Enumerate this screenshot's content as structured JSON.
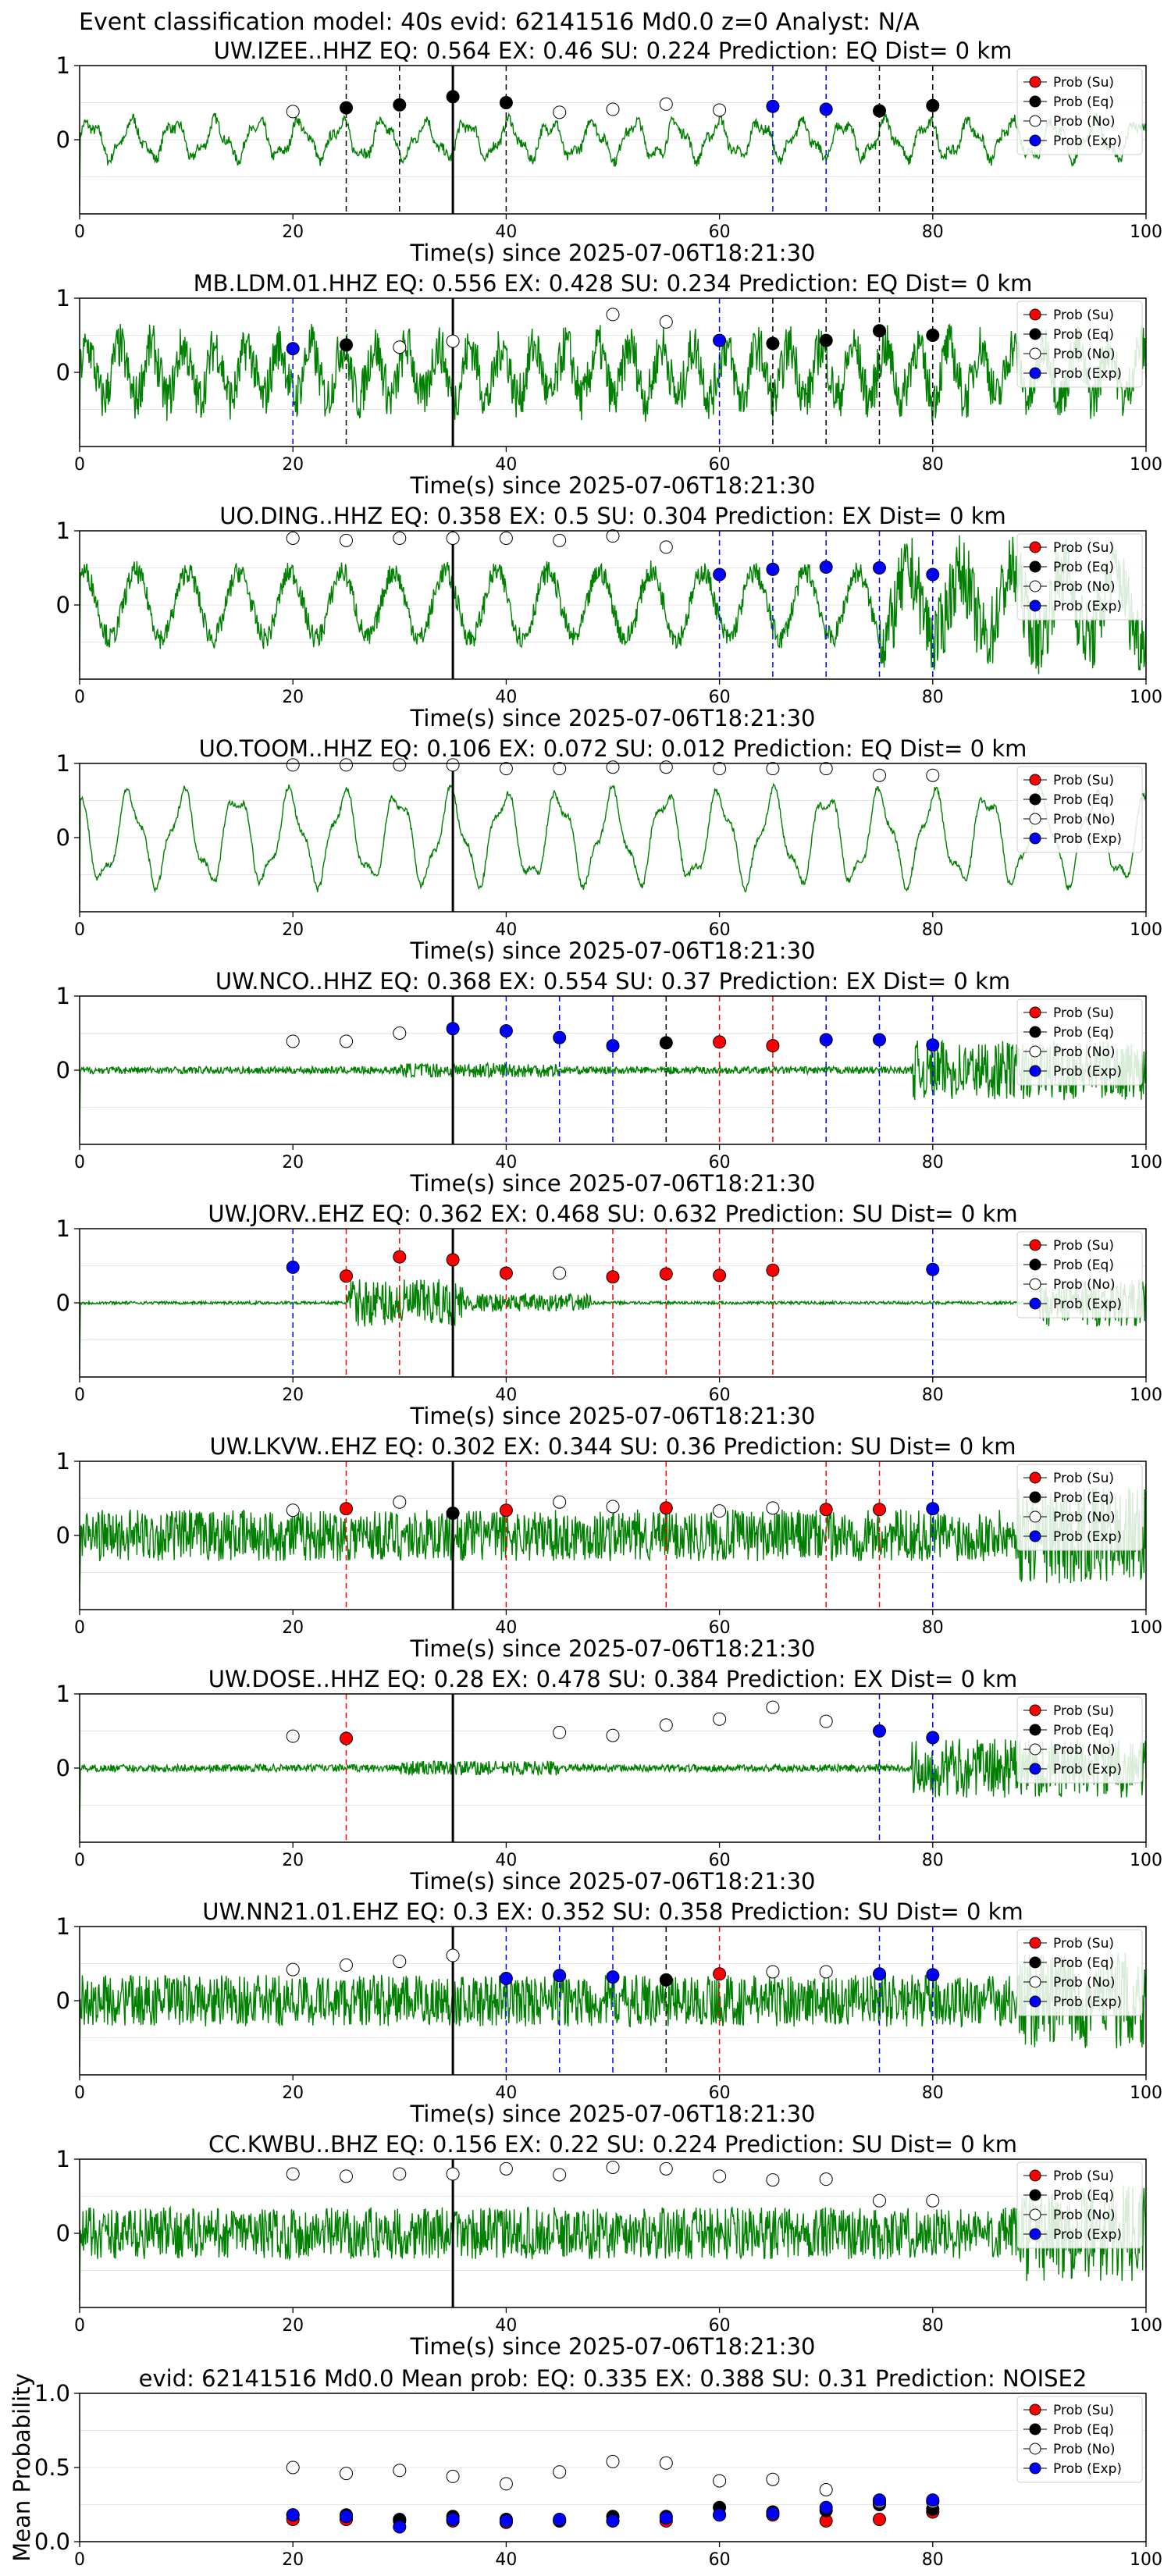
{
  "suptitle": "Event classification model: 40s evid: 62141516 Md0.0 z=0 Analyst: N/A",
  "xlabel": "Time(s) since 2025-07-06T18:21:30",
  "legend": [
    "Prob (Su)",
    "Prob (Eq)",
    "Prob (No)",
    "Prob (Exp)"
  ],
  "colors": {
    "su": "#ff0000",
    "eq": "#000000",
    "no": "#ffffff",
    "exp": "#0000ff",
    "trace": "#008000",
    "su_line": "#ff0000",
    "eq_line": "#000000",
    "exp_line": "#0000ff"
  },
  "chart_data": [
    {
      "type": "line",
      "title": "UW.IZEE..HHZ   EQ: 0.564  EX: 0.46  SU: 0.224   Prediction: EQ    Dist= 0 km",
      "xlim": [
        0,
        100
      ],
      "xticks": [
        0,
        20,
        40,
        60,
        80,
        100
      ],
      "ylim": [
        -1,
        1
      ],
      "yticks": [
        0,
        1
      ],
      "vline": 35,
      "noise": "low_wave",
      "points": [
        [
          20,
          0.38,
          "no"
        ],
        [
          25,
          0.43,
          "eq"
        ],
        [
          30,
          0.47,
          "eq"
        ],
        [
          35,
          0.58,
          "eq"
        ],
        [
          40,
          0.5,
          "eq"
        ],
        [
          45,
          0.37,
          "no"
        ],
        [
          50,
          0.41,
          "no"
        ],
        [
          55,
          0.48,
          "no"
        ],
        [
          60,
          0.4,
          "no"
        ],
        [
          65,
          0.45,
          "exp"
        ],
        [
          70,
          0.41,
          "exp"
        ],
        [
          75,
          0.39,
          "eq"
        ],
        [
          80,
          0.46,
          "eq"
        ]
      ]
    },
    {
      "type": "line",
      "title": "MB.LDM.01.HHZ   EQ: 0.556  EX: 0.428  SU: 0.234   Prediction: EQ    Dist= 0 km",
      "xlim": [
        0,
        100
      ],
      "xticks": [
        0,
        20,
        40,
        60,
        80,
        100
      ],
      "ylim": [
        -1,
        1
      ],
      "yticks": [
        0,
        1
      ],
      "vline": 35,
      "noise": "mixed",
      "points": [
        [
          20,
          0.32,
          "exp"
        ],
        [
          25,
          0.37,
          "eq"
        ],
        [
          30,
          0.34,
          "no"
        ],
        [
          35,
          0.42,
          "no"
        ],
        [
          50,
          0.78,
          "no"
        ],
        [
          55,
          0.68,
          "no"
        ],
        [
          60,
          0.43,
          "exp"
        ],
        [
          65,
          0.39,
          "eq"
        ],
        [
          70,
          0.43,
          "eq"
        ],
        [
          75,
          0.56,
          "eq"
        ],
        [
          80,
          0.5,
          "eq"
        ]
      ]
    },
    {
      "type": "line",
      "title": "UO.DING..HHZ   EQ: 0.358  EX: 0.5  SU: 0.304   Prediction: EX    Dist= 0 km",
      "xlim": [
        0,
        100
      ],
      "xticks": [
        0,
        20,
        40,
        60,
        80,
        100
      ],
      "ylim": [
        -1,
        1
      ],
      "yticks": [
        0,
        1
      ],
      "vline": 35,
      "noise": "wave",
      "points": [
        [
          20,
          0.9,
          "no"
        ],
        [
          25,
          0.87,
          "no"
        ],
        [
          30,
          0.9,
          "no"
        ],
        [
          35,
          0.9,
          "no"
        ],
        [
          40,
          0.9,
          "no"
        ],
        [
          45,
          0.87,
          "no"
        ],
        [
          50,
          0.93,
          "no"
        ],
        [
          55,
          0.78,
          "no"
        ],
        [
          60,
          0.41,
          "exp"
        ],
        [
          65,
          0.48,
          "exp"
        ],
        [
          70,
          0.51,
          "exp"
        ],
        [
          75,
          0.5,
          "exp"
        ],
        [
          80,
          0.41,
          "exp"
        ]
      ]
    },
    {
      "type": "line",
      "title": "UO.TOOM..HHZ   EQ: 0.106  EX: 0.072  SU: 0.012   Prediction: EQ    Dist= 0 km",
      "xlim": [
        0,
        100
      ],
      "xticks": [
        0,
        20,
        40,
        60,
        80,
        100
      ],
      "ylim": [
        -1,
        1
      ],
      "yticks": [
        0,
        1
      ],
      "vline": 35,
      "noise": "big_wave",
      "points": [
        [
          20,
          0.98,
          "no"
        ],
        [
          25,
          0.98,
          "no"
        ],
        [
          30,
          0.98,
          "no"
        ],
        [
          35,
          0.98,
          "no"
        ],
        [
          40,
          0.93,
          "no"
        ],
        [
          45,
          0.93,
          "no"
        ],
        [
          50,
          0.95,
          "no"
        ],
        [
          55,
          0.95,
          "no"
        ],
        [
          60,
          0.93,
          "no"
        ],
        [
          65,
          0.93,
          "no"
        ],
        [
          70,
          0.93,
          "no"
        ],
        [
          75,
          0.84,
          "no"
        ],
        [
          80,
          0.84,
          "no"
        ]
      ]
    },
    {
      "type": "line",
      "title": "UW.NCO..HHZ   EQ: 0.368  EX: 0.554  SU: 0.37   Prediction: EX    Dist= 0 km",
      "xlim": [
        0,
        100
      ],
      "xticks": [
        0,
        20,
        40,
        60,
        80,
        100
      ],
      "ylim": [
        -1,
        1
      ],
      "yticks": [
        0,
        1
      ],
      "vline": 35,
      "noise": "quiet_end",
      "points": [
        [
          20,
          0.39,
          "no"
        ],
        [
          25,
          0.39,
          "no"
        ],
        [
          30,
          0.5,
          "no"
        ],
        [
          35,
          0.56,
          "exp"
        ],
        [
          40,
          0.53,
          "exp"
        ],
        [
          45,
          0.44,
          "exp"
        ],
        [
          50,
          0.33,
          "exp"
        ],
        [
          55,
          0.37,
          "eq"
        ],
        [
          60,
          0.38,
          "su"
        ],
        [
          65,
          0.33,
          "su"
        ],
        [
          70,
          0.41,
          "exp"
        ],
        [
          75,
          0.41,
          "exp"
        ],
        [
          80,
          0.34,
          "exp"
        ]
      ]
    },
    {
      "type": "line",
      "title": "UW.JORV..EHZ   EQ: 0.362  EX: 0.468  SU: 0.632   Prediction: SU    Dist= 0 km",
      "xlim": [
        0,
        100
      ],
      "xticks": [
        0,
        20,
        40,
        60,
        80,
        100
      ],
      "ylim": [
        -1,
        1
      ],
      "yticks": [
        0,
        1
      ],
      "vline": 35,
      "noise": "burst",
      "points": [
        [
          20,
          0.48,
          "exp"
        ],
        [
          25,
          0.36,
          "su"
        ],
        [
          30,
          0.62,
          "su"
        ],
        [
          35,
          0.58,
          "su"
        ],
        [
          40,
          0.4,
          "su"
        ],
        [
          45,
          0.4,
          "no"
        ],
        [
          50,
          0.35,
          "su"
        ],
        [
          55,
          0.39,
          "su"
        ],
        [
          60,
          0.37,
          "su"
        ],
        [
          65,
          0.44,
          "su"
        ],
        [
          80,
          0.45,
          "exp"
        ]
      ]
    },
    {
      "type": "line",
      "title": "UW.LKVW..EHZ   EQ: 0.302  EX: 0.344  SU: 0.36   Prediction: SU    Dist= 0 km",
      "xlim": [
        0,
        100
      ],
      "xticks": [
        0,
        20,
        40,
        60,
        80,
        100
      ],
      "ylim": [
        -1,
        1
      ],
      "yticks": [
        0,
        1
      ],
      "vline": 35,
      "noise": "dense",
      "points": [
        [
          20,
          0.34,
          "no"
        ],
        [
          25,
          0.36,
          "su"
        ],
        [
          30,
          0.45,
          "no"
        ],
        [
          35,
          0.3,
          "eq"
        ],
        [
          40,
          0.34,
          "su"
        ],
        [
          45,
          0.45,
          "no"
        ],
        [
          50,
          0.39,
          "no"
        ],
        [
          55,
          0.37,
          "su"
        ],
        [
          60,
          0.33,
          "no"
        ],
        [
          65,
          0.37,
          "no"
        ],
        [
          70,
          0.35,
          "su"
        ],
        [
          75,
          0.35,
          "su"
        ],
        [
          80,
          0.36,
          "exp"
        ]
      ]
    },
    {
      "type": "line",
      "title": "UW.DOSE..HHZ   EQ: 0.28  EX: 0.478  SU: 0.384   Prediction: EX    Dist= 0 km",
      "xlim": [
        0,
        100
      ],
      "xticks": [
        0,
        20,
        40,
        60,
        80,
        100
      ],
      "ylim": [
        -1,
        1
      ],
      "yticks": [
        0,
        1
      ],
      "vline": 35,
      "noise": "quiet_end",
      "points": [
        [
          20,
          0.43,
          "no"
        ],
        [
          25,
          0.4,
          "su"
        ],
        [
          45,
          0.48,
          "no"
        ],
        [
          50,
          0.44,
          "no"
        ],
        [
          55,
          0.58,
          "no"
        ],
        [
          60,
          0.66,
          "no"
        ],
        [
          65,
          0.82,
          "no"
        ],
        [
          70,
          0.63,
          "no"
        ],
        [
          75,
          0.5,
          "exp"
        ],
        [
          80,
          0.41,
          "exp"
        ]
      ]
    },
    {
      "type": "line",
      "title": "UW.NN21.01.EHZ   EQ: 0.3  EX: 0.352  SU: 0.358   Prediction: SU    Dist= 0 km",
      "xlim": [
        0,
        100
      ],
      "xticks": [
        0,
        20,
        40,
        60,
        80,
        100
      ],
      "ylim": [
        -1,
        1
      ],
      "yticks": [
        0,
        1
      ],
      "vline": 35,
      "noise": "dense",
      "points": [
        [
          20,
          0.42,
          "no"
        ],
        [
          25,
          0.48,
          "no"
        ],
        [
          30,
          0.53,
          "no"
        ],
        [
          35,
          0.61,
          "no"
        ],
        [
          40,
          0.3,
          "exp"
        ],
        [
          45,
          0.34,
          "exp"
        ],
        [
          50,
          0.32,
          "exp"
        ],
        [
          55,
          0.28,
          "eq"
        ],
        [
          60,
          0.36,
          "su"
        ],
        [
          65,
          0.39,
          "no"
        ],
        [
          70,
          0.39,
          "no"
        ],
        [
          75,
          0.36,
          "exp"
        ],
        [
          80,
          0.35,
          "exp"
        ]
      ]
    },
    {
      "type": "line",
      "title": "CC.KWBU..BHZ   EQ: 0.156  EX: 0.22  SU: 0.224   Prediction: SU    Dist= 0 km",
      "xlim": [
        0,
        100
      ],
      "xticks": [
        0,
        20,
        40,
        60,
        80,
        100
      ],
      "ylim": [
        -1,
        1
      ],
      "yticks": [
        0,
        1
      ],
      "vline": 35,
      "noise": "dense",
      "points": [
        [
          20,
          0.8,
          "no"
        ],
        [
          25,
          0.77,
          "no"
        ],
        [
          30,
          0.8,
          "no"
        ],
        [
          35,
          0.8,
          "no"
        ],
        [
          40,
          0.87,
          "no"
        ],
        [
          45,
          0.79,
          "no"
        ],
        [
          50,
          0.89,
          "no"
        ],
        [
          55,
          0.87,
          "no"
        ],
        [
          60,
          0.77,
          "no"
        ],
        [
          65,
          0.72,
          "no"
        ],
        [
          70,
          0.73,
          "no"
        ],
        [
          75,
          0.44,
          "no"
        ],
        [
          80,
          0.44,
          "no"
        ]
      ]
    },
    {
      "type": "scatter",
      "title": "evid: 62141516  Md0.0   Mean prob:   EQ: 0.335  EX: 0.388  SU: 0.31   Prediction: NOISE2",
      "ylabel": "Mean Probability",
      "xlim": [
        0,
        100
      ],
      "xticks": [
        0,
        20,
        40,
        60,
        80,
        100
      ],
      "ylim": [
        0,
        1
      ],
      "yticks": [
        0.0,
        0.5,
        1.0
      ],
      "series": [
        {
          "name": "Prob (Su)",
          "key": "su",
          "x": [
            20,
            25,
            30,
            35,
            40,
            45,
            50,
            55,
            60,
            65,
            70,
            75,
            80
          ],
          "y": [
            0.15,
            0.15,
            0.14,
            0.14,
            0.13,
            0.14,
            0.14,
            0.14,
            0.18,
            0.18,
            0.14,
            0.15,
            0.2
          ]
        },
        {
          "name": "Prob (Eq)",
          "key": "eq",
          "x": [
            20,
            25,
            30,
            35,
            40,
            45,
            50,
            55,
            60,
            65,
            70,
            75,
            80
          ],
          "y": [
            0.18,
            0.18,
            0.15,
            0.17,
            0.15,
            0.14,
            0.17,
            0.17,
            0.23,
            0.2,
            0.21,
            0.25,
            0.22
          ]
        },
        {
          "name": "Prob (No)",
          "key": "no",
          "x": [
            20,
            25,
            30,
            35,
            40,
            45,
            50,
            55,
            60,
            65,
            70,
            75,
            80
          ],
          "y": [
            0.5,
            0.46,
            0.48,
            0.44,
            0.39,
            0.47,
            0.54,
            0.53,
            0.41,
            0.42,
            0.35,
            0.27,
            0.27
          ]
        },
        {
          "name": "Prob (Exp)",
          "key": "exp",
          "x": [
            20,
            25,
            30,
            35,
            40,
            45,
            50,
            55,
            60,
            65,
            70,
            75,
            80
          ],
          "y": [
            0.18,
            0.17,
            0.1,
            0.15,
            0.14,
            0.15,
            0.14,
            0.16,
            0.18,
            0.19,
            0.23,
            0.28,
            0.28
          ]
        }
      ]
    }
  ]
}
